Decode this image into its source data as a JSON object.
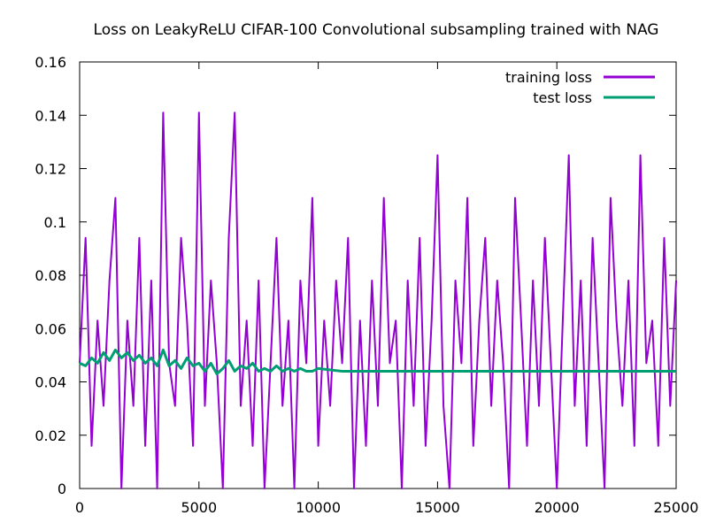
{
  "chart_data": {
    "type": "line",
    "title": "Loss on LeakyReLU CIFAR-100 Convolutional subsampling trained with NAG",
    "xlabel": "",
    "ylabel": "",
    "xlim": [
      0,
      25000
    ],
    "ylim": [
      0,
      0.16
    ],
    "x_ticks": [
      "0",
      "5000",
      "10000",
      "15000",
      "20000",
      "25000"
    ],
    "y_ticks": [
      "0",
      "0.02",
      "0.04",
      "0.06",
      "0.08",
      "0.1",
      "0.12",
      "0.14",
      "0.16"
    ],
    "legend_position": "top-right",
    "grid": false,
    "series": [
      {
        "name": "training loss",
        "color": "#9400d3",
        "x": [
          0,
          250,
          500,
          750,
          1000,
          1250,
          1500,
          1750,
          2000,
          2250,
          2500,
          2750,
          3000,
          3250,
          3500,
          3750,
          4000,
          4250,
          4500,
          4750,
          5000,
          5250,
          5500,
          5750,
          6000,
          6250,
          6500,
          6750,
          7000,
          7250,
          7500,
          7750,
          8000,
          8250,
          8500,
          8750,
          9000,
          9250,
          9500,
          9750,
          10000,
          10250,
          10500,
          10750,
          11000,
          11250,
          11500,
          11750,
          12000,
          12250,
          12500,
          12750,
          13000,
          13250,
          13500,
          13750,
          14000,
          14250,
          14500,
          14750,
          15000,
          15250,
          15500,
          15750,
          16000,
          16250,
          16500,
          16750,
          17000,
          17250,
          17500,
          17750,
          18000,
          18250,
          18500,
          18750,
          19000,
          19250,
          19500,
          19750,
          20000,
          20250,
          20500,
          20750,
          21000,
          21250,
          21500,
          21750,
          22000,
          22250,
          22500,
          22750,
          23000,
          23250,
          23500,
          23750,
          24000,
          24250,
          24500,
          24750,
          25000
        ],
        "y": [
          0.047,
          0.094,
          0.016,
          0.063,
          0.031,
          0.078,
          0.109,
          0.0,
          0.063,
          0.031,
          0.094,
          0.016,
          0.078,
          0.0,
          0.141,
          0.047,
          0.031,
          0.094,
          0.063,
          0.016,
          0.141,
          0.031,
          0.078,
          0.047,
          0.0,
          0.094,
          0.141,
          0.031,
          0.063,
          0.016,
          0.078,
          0.0,
          0.047,
          0.094,
          0.031,
          0.063,
          0.0,
          0.078,
          0.047,
          0.109,
          0.016,
          0.063,
          0.031,
          0.078,
          0.047,
          0.094,
          0.0,
          0.063,
          0.016,
          0.078,
          0.031,
          0.109,
          0.047,
          0.063,
          0.0,
          0.078,
          0.031,
          0.094,
          0.016,
          0.063,
          0.125,
          0.031,
          0.0,
          0.078,
          0.047,
          0.109,
          0.016,
          0.063,
          0.094,
          0.031,
          0.078,
          0.047,
          0.0,
          0.109,
          0.063,
          0.016,
          0.078,
          0.031,
          0.094,
          0.047,
          0.0,
          0.063,
          0.125,
          0.031,
          0.078,
          0.016,
          0.094,
          0.047,
          0.0,
          0.109,
          0.063,
          0.031,
          0.078,
          0.016,
          0.125,
          0.047,
          0.063,
          0.016,
          0.094,
          0.031,
          0.078
        ]
      },
      {
        "name": "test loss",
        "color": "#009e73",
        "x": [
          0,
          250,
          500,
          750,
          1000,
          1250,
          1500,
          1750,
          2000,
          2250,
          2500,
          2750,
          3000,
          3250,
          3500,
          3750,
          4000,
          4250,
          4500,
          4750,
          5000,
          5250,
          5500,
          5750,
          6000,
          6250,
          6500,
          6750,
          7000,
          7250,
          7500,
          7750,
          8000,
          8250,
          8500,
          8750,
          9000,
          9250,
          9500,
          9750,
          10000,
          11000,
          12000,
          13000,
          14000,
          15000,
          16000,
          17000,
          18000,
          19000,
          20000,
          21000,
          22000,
          23000,
          24000,
          25000
        ],
        "y": [
          0.047,
          0.046,
          0.049,
          0.047,
          0.051,
          0.048,
          0.052,
          0.049,
          0.051,
          0.048,
          0.05,
          0.047,
          0.049,
          0.046,
          0.052,
          0.046,
          0.048,
          0.045,
          0.049,
          0.046,
          0.047,
          0.044,
          0.047,
          0.043,
          0.045,
          0.048,
          0.044,
          0.046,
          0.045,
          0.047,
          0.044,
          0.045,
          0.044,
          0.046,
          0.044,
          0.045,
          0.044,
          0.045,
          0.044,
          0.044,
          0.045,
          0.044,
          0.044,
          0.044,
          0.044,
          0.044,
          0.044,
          0.044,
          0.044,
          0.044,
          0.044,
          0.044,
          0.044,
          0.044,
          0.044,
          0.044
        ]
      }
    ]
  }
}
